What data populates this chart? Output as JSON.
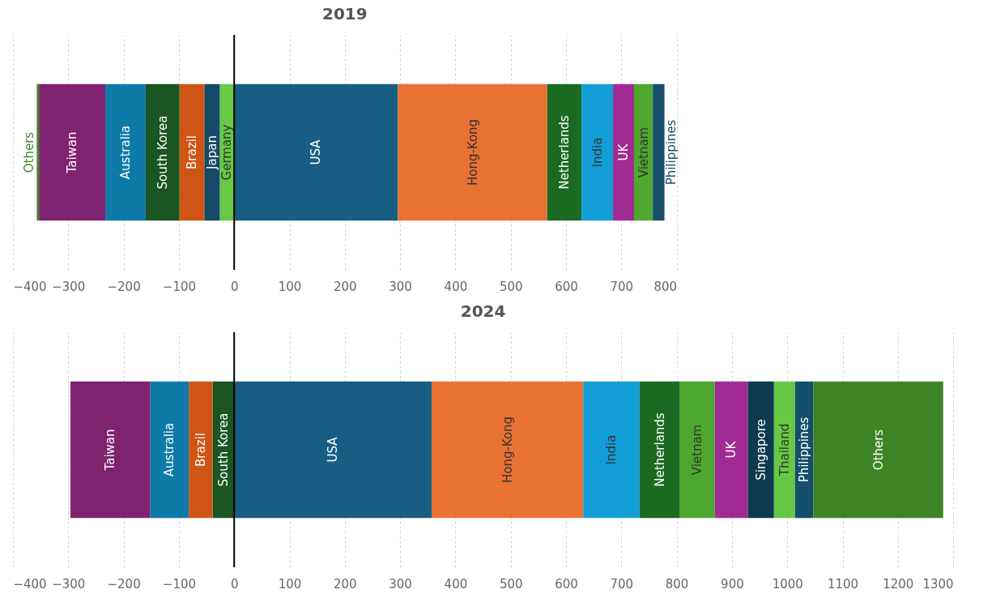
{
  "chart_data": [
    {
      "type": "bar",
      "title": "2019",
      "orientation": "horizontal",
      "stacked": true,
      "categories": [
        null
      ],
      "series": [
        {
          "name": "USA",
          "color": "#175e82",
          "values": [
            296
          ]
        },
        {
          "name": "Germany",
          "color": "#68c944",
          "values": [
            -26
          ]
        },
        {
          "name": "Hong-Kong",
          "color": "#e97132",
          "values": [
            270
          ]
        },
        {
          "name": "Japan",
          "color": "#164a68",
          "values": [
            -28
          ]
        },
        {
          "name": "Netherlands",
          "color": "#1b6a22",
          "values": [
            62
          ]
        },
        {
          "name": "Brazil",
          "color": "#cf5516",
          "values": [
            -45
          ]
        },
        {
          "name": "India",
          "color": "#139ed8",
          "values": [
            57
          ]
        },
        {
          "name": "South Korea",
          "color": "#1a5522",
          "values": [
            -61
          ]
        },
        {
          "name": "UK",
          "color": "#a02b93",
          "values": [
            38
          ]
        },
        {
          "name": "Australia",
          "color": "#0e7aa8",
          "values": [
            -73
          ]
        },
        {
          "name": "Vietnam",
          "color": "#4ea72e",
          "values": [
            34
          ]
        },
        {
          "name": "Taiwan",
          "color": "#7f2270",
          "values": [
            -120
          ]
        },
        {
          "name": "Philippines",
          "color": "#164e6c",
          "values": [
            21
          ]
        },
        {
          "name": "Others",
          "color": "#3e8a26",
          "values": [
            -4
          ]
        }
      ],
      "xlim": [
        -400,
        800
      ],
      "xticks": [
        -400,
        -300,
        -200,
        -100,
        0,
        100,
        200,
        300,
        400,
        500,
        600,
        700,
        800
      ],
      "grid": "x",
      "ref_lines": [
        {
          "axis": "x",
          "value": 0,
          "color": "#000000"
        }
      ]
    },
    {
      "type": "bar",
      "title": "2024",
      "orientation": "horizontal",
      "stacked": true,
      "categories": [
        null
      ],
      "series": [
        {
          "name": "USA",
          "color": "#175e82",
          "values": [
            357
          ]
        },
        {
          "name": "South Korea",
          "color": "#1a5522",
          "values": [
            -39
          ]
        },
        {
          "name": "Hong-Kong",
          "color": "#e97132",
          "values": [
            274
          ]
        },
        {
          "name": "Brazil",
          "color": "#cf5516",
          "values": [
            -43
          ]
        },
        {
          "name": "India",
          "color": "#139ed8",
          "values": [
            102
          ]
        },
        {
          "name": "Australia",
          "color": "#0e7aa8",
          "values": [
            -70
          ]
        },
        {
          "name": "Netherlands",
          "color": "#1b6a22",
          "values": [
            73
          ]
        },
        {
          "name": "Taiwan",
          "color": "#7f2270",
          "values": [
            -144
          ]
        },
        {
          "name": "Vietnam",
          "color": "#4ea72e",
          "values": [
            63
          ]
        },
        {
          "name": "UK",
          "color": "#a02b93",
          "values": [
            60
          ]
        },
        {
          "name": "Singapore",
          "color": "#0e3a4f",
          "values": [
            47
          ]
        },
        {
          "name": "Thailand",
          "color": "#66c944",
          "values": [
            38
          ]
        },
        {
          "name": "Philippines",
          "color": "#154e6c",
          "values": [
            33
          ]
        },
        {
          "name": "Others",
          "color": "#3e8425",
          "values": [
            235
          ]
        }
      ],
      "xlim": [
        -400,
        1300
      ],
      "xticks": [
        -400,
        -300,
        -200,
        -100,
        0,
        100,
        200,
        300,
        400,
        500,
        600,
        700,
        800,
        900,
        1000,
        1100,
        1200,
        1300
      ],
      "grid": "x",
      "ref_lines": [
        {
          "axis": "x",
          "value": 0,
          "color": "#000000"
        }
      ]
    }
  ]
}
